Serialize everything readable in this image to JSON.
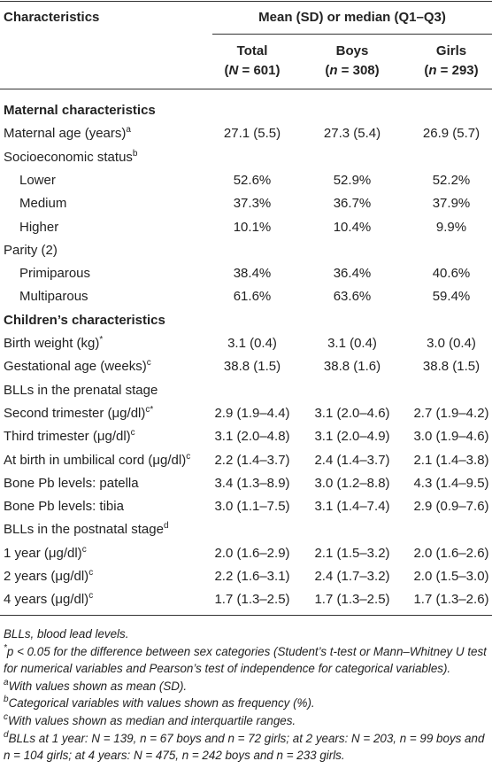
{
  "table": {
    "header": {
      "characteristics": "Characteristics",
      "group": "Mean (SD) or median (Q1–Q3)",
      "columns": [
        {
          "name": "Total",
          "n_parts": [
            "(",
            "N",
            " = 601)"
          ]
        },
        {
          "name": "Boys",
          "n_parts": [
            "(",
            "n",
            " = 308)"
          ]
        },
        {
          "name": "Girls",
          "n_parts": [
            "(",
            "n",
            " = 293)"
          ]
        }
      ]
    },
    "rows": [
      {
        "kind": "section",
        "label": "Maternal characteristics"
      },
      {
        "kind": "row",
        "label": "Maternal age (years)",
        "sup": "a",
        "values": [
          "27.1 (5.5)",
          "27.3 (5.4)",
          "26.9 (5.7)"
        ]
      },
      {
        "kind": "row",
        "label": "Socioeconomic status",
        "sup": "b"
      },
      {
        "kind": "item",
        "label": "Lower",
        "values": [
          "52.6%",
          "52.9%",
          "52.2%"
        ]
      },
      {
        "kind": "item",
        "label": "Medium",
        "values": [
          "37.3%",
          "36.7%",
          "37.9%"
        ]
      },
      {
        "kind": "item",
        "label": "Higher",
        "values": [
          "10.1%",
          "10.4%",
          "9.9%"
        ]
      },
      {
        "kind": "row",
        "label": "Parity (2)"
      },
      {
        "kind": "item",
        "label": "Primiparous",
        "values": [
          "38.4%",
          "36.4%",
          "40.6%"
        ]
      },
      {
        "kind": "item",
        "label": "Multiparous",
        "values": [
          "61.6%",
          "63.6%",
          "59.4%"
        ]
      },
      {
        "kind": "section",
        "label": "Children’s characteristics"
      },
      {
        "kind": "row",
        "label": "Birth weight (kg)",
        "sup": "*",
        "values": [
          "3.1 (0.4)",
          "3.1 (0.4)",
          "3.0 (0.4)"
        ]
      },
      {
        "kind": "row",
        "label": "Gestational age (weeks)",
        "sup": "c",
        "values": [
          "38.8 (1.5)",
          "38.8 (1.6)",
          "38.8 (1.5)"
        ]
      },
      {
        "kind": "row",
        "label": "BLLs in the prenatal stage"
      },
      {
        "kind": "row",
        "label": "Second trimester (μg/dl)",
        "sup": "c*",
        "values": [
          "2.9 (1.9–4.4)",
          "3.1 (2.0–4.6)",
          "2.7 (1.9–4.2)"
        ]
      },
      {
        "kind": "row",
        "label": "Third trimester (μg/dl)",
        "sup": "c",
        "values": [
          "3.1 (2.0–4.8)",
          "3.1 (2.0–4.9)",
          "3.0 (1.9–4.6)"
        ]
      },
      {
        "kind": "row",
        "label": "At birth in umbilical cord (μg/dl)",
        "sup": "c",
        "values": [
          "2.2 (1.4–3.7)",
          "2.4 (1.4–3.7)",
          "2.1 (1.4–3.8)"
        ]
      },
      {
        "kind": "row",
        "label": "Bone Pb levels: patella",
        "values": [
          "3.4 (1.3–8.9)",
          "3.0 (1.2–8.8)",
          "4.3 (1.4–9.5)"
        ]
      },
      {
        "kind": "row",
        "label": "Bone Pb levels: tibia",
        "values": [
          "3.0 (1.1–7.5)",
          "3.1 (1.4–7.4)",
          "2.9 (0.9–7.6)"
        ]
      },
      {
        "kind": "row",
        "label": "BLLs in the postnatal stage",
        "sup": "d"
      },
      {
        "kind": "row",
        "label": "1 year (μg/dl)",
        "sup": "c",
        "values": [
          "2.0 (1.6–2.9)",
          "2.1 (1.5–3.2)",
          "2.0 (1.6–2.6)"
        ]
      },
      {
        "kind": "row",
        "label": "2 years (μg/dl)",
        "sup": "c",
        "values": [
          "2.2 (1.6–3.1)",
          "2.4 (1.7–3.2)",
          "2.0 (1.5–3.0)"
        ]
      },
      {
        "kind": "row",
        "label": "4 years (μg/dl)",
        "sup": "c",
        "values": [
          "1.7 (1.3–2.5)",
          "1.7 (1.3–2.5)",
          "1.7 (1.3–2.6)"
        ]
      }
    ],
    "footnotes": [
      {
        "text": "BLLs, blood lead levels."
      },
      {
        "marker": "*",
        "text": "p < 0.05 for the difference between sex categories (Student’s t-test or Mann–Whitney U test for numerical variables and Pearson’s test of independence for categorical variables)."
      },
      {
        "marker": "a",
        "text": "With values shown as mean (SD)."
      },
      {
        "marker": "b",
        "text": "Categorical variables with values shown as frequency (%)."
      },
      {
        "marker": "c",
        "text": "With values shown as median and interquartile ranges."
      },
      {
        "marker": "d",
        "text": "BLLs at 1 year: N = 139, n = 67 boys and n = 72 girls; at 2 years: N = 203, n = 99 boys and n = 104 girls; at 4 years: N = 475, n = 242 boys and n = 233 girls."
      }
    ]
  }
}
